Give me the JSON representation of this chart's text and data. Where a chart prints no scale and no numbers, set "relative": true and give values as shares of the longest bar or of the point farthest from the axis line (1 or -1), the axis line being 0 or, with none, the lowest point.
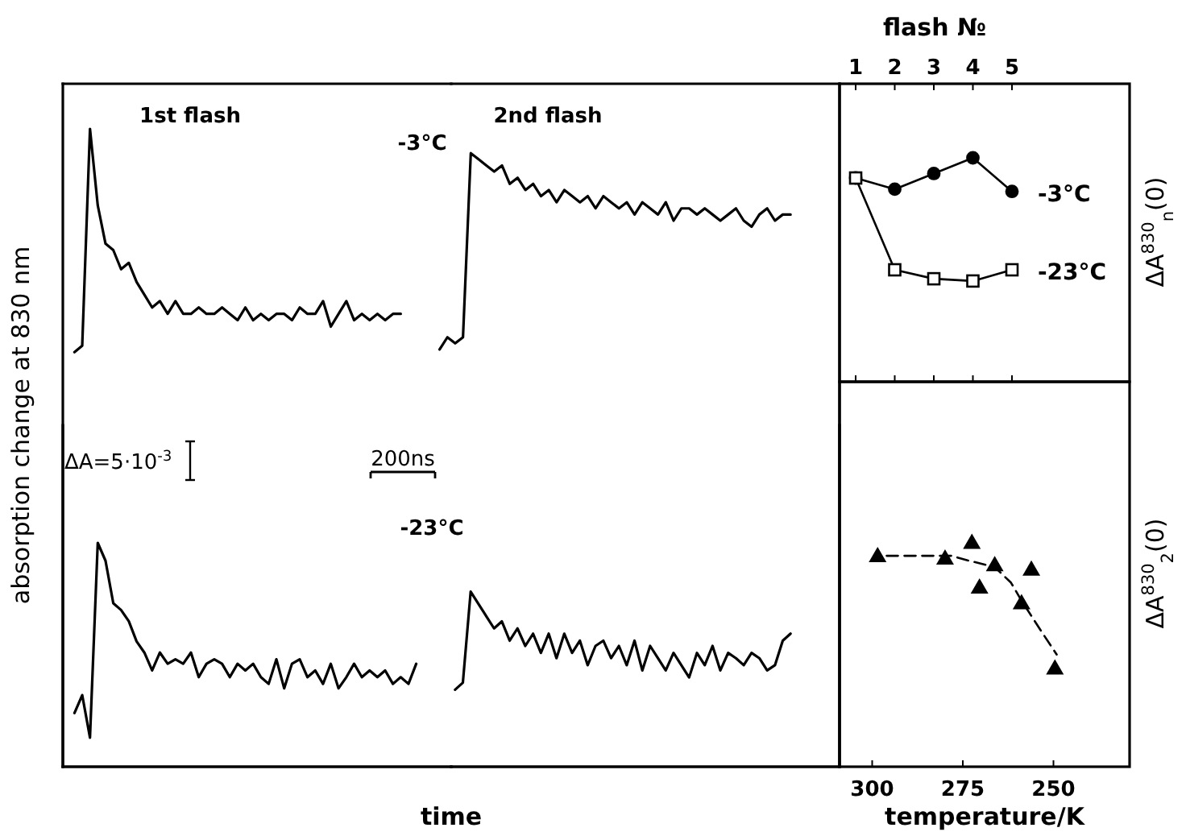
{
  "chart_data": [
    {
      "type": "line",
      "relative": true,
      "ylabel": "absorption change at 830 nm",
      "tick_labels": false,
      "annotations": [
        "1st flash",
        "-3°C",
        "ΔA=5·10$^{-3}$",
        "200ns"
      ],
      "categories": [
        null,
        null,
        null,
        null,
        null,
        null,
        null,
        null,
        null,
        null,
        null,
        null,
        null,
        null,
        null,
        null,
        null,
        null,
        null,
        null,
        null,
        null,
        null,
        null,
        null,
        null,
        null,
        null,
        null,
        null,
        null,
        null,
        null,
        null,
        null,
        null,
        null,
        null,
        null,
        null,
        null,
        null,
        null
      ],
      "series": [
        {
          "color": "#000000",
          "values": [
            0.65,
            0.66,
            1,
            0.88,
            0.82,
            0.81,
            0.78,
            0.79,
            0.76,
            0.74,
            0.72,
            0.73,
            0.71,
            0.73,
            0.71,
            0.71,
            0.72,
            0.71,
            0.71,
            0.72,
            0.71,
            0.7,
            0.72,
            0.7,
            0.71,
            0.7,
            0.71,
            0.71,
            0.7,
            0.72,
            0.71,
            0.71,
            0.73,
            0.69,
            0.71,
            0.73,
            0.7,
            0.71,
            0.7,
            0.71,
            0.7,
            0.71,
            0.71
          ]
        }
      ]
    },
    {
      "type": "line",
      "relative": true,
      "tick_labels": false,
      "annotations": [
        "2nd flash"
      ],
      "categories": [
        null,
        null,
        null,
        null,
        null,
        null,
        null,
        null,
        null,
        null,
        null,
        null,
        null,
        null,
        null,
        null,
        null,
        null,
        null,
        null,
        null,
        null,
        null,
        null,
        null,
        null,
        null,
        null,
        null,
        null,
        null,
        null,
        null,
        null,
        null,
        null,
        null,
        null,
        null,
        null,
        null,
        null,
        null,
        null,
        null,
        null
      ],
      "series": [
        {
          "color": "#000000",
          "values": [
            0.68,
            0.7,
            0.69,
            0.7,
            1,
            0.99,
            0.98,
            0.97,
            0.98,
            0.95,
            0.96,
            0.94,
            0.95,
            0.93,
            0.94,
            0.92,
            0.94,
            0.93,
            0.92,
            0.93,
            0.91,
            0.93,
            0.92,
            0.91,
            0.92,
            0.9,
            0.92,
            0.91,
            0.9,
            0.92,
            0.89,
            0.91,
            0.91,
            0.9,
            0.91,
            0.9,
            0.89,
            0.9,
            0.91,
            0.89,
            0.88,
            0.9,
            0.91,
            0.89,
            0.9,
            0.9
          ]
        }
      ]
    },
    {
      "type": "line",
      "relative": true,
      "xlabel": "time",
      "tick_labels": false,
      "annotations": [
        "-23°C"
      ],
      "categories": [
        null,
        null,
        null,
        null,
        null,
        null,
        null,
        null,
        null,
        null,
        null,
        null,
        null,
        null,
        null,
        null,
        null,
        null,
        null,
        null,
        null,
        null,
        null,
        null,
        null,
        null,
        null,
        null,
        null,
        null,
        null,
        null,
        null,
        null,
        null,
        null,
        null,
        null,
        null,
        null,
        null,
        null,
        null,
        null,
        null
      ],
      "series": [
        {
          "color": "#000000",
          "values": [
            0.24,
            0.32,
            0.13,
            1,
            0.92,
            0.73,
            0.7,
            0.65,
            0.56,
            0.51,
            0.43,
            0.51,
            0.46,
            0.48,
            0.46,
            0.51,
            0.4,
            0.46,
            0.48,
            0.46,
            0.4,
            0.46,
            0.43,
            0.46,
            0.4,
            0.37,
            0.48,
            0.35,
            0.46,
            0.48,
            0.4,
            0.43,
            0.37,
            0.46,
            0.35,
            0.4,
            0.46,
            0.4,
            0.43,
            0.4,
            0.43,
            0.37,
            0.4,
            0.37,
            0.46
          ]
        }
      ]
    },
    {
      "type": "line",
      "relative": true,
      "tick_labels": false,
      "categories": [
        null,
        null,
        null,
        null,
        null,
        null,
        null,
        null,
        null,
        null,
        null,
        null,
        null,
        null,
        null,
        null,
        null,
        null,
        null,
        null,
        null,
        null,
        null,
        null,
        null,
        null,
        null,
        null,
        null,
        null,
        null,
        null,
        null,
        null,
        null,
        null,
        null,
        null,
        null,
        null,
        null,
        null,
        null,
        null
      ],
      "series": [
        {
          "color": "#000000",
          "values": [
            0.44,
            0.48,
            1,
            0.93,
            0.86,
            0.79,
            0.83,
            0.72,
            0.79,
            0.69,
            0.76,
            0.65,
            0.76,
            0.62,
            0.76,
            0.65,
            0.72,
            0.58,
            0.69,
            0.72,
            0.62,
            0.69,
            0.58,
            0.72,
            0.55,
            0.69,
            0.62,
            0.55,
            0.65,
            0.58,
            0.51,
            0.65,
            0.58,
            0.69,
            0.55,
            0.65,
            0.62,
            0.58,
            0.65,
            0.62,
            0.55,
            0.58,
            0.72,
            0.76
          ]
        }
      ]
    },
    {
      "type": "line",
      "relative": true,
      "xlabel": "flash №",
      "ylabel": "ΔA$^{830}$$_{n}$(0)",
      "tick_labels": "x",
      "categories": [
        "1",
        "2",
        "3",
        "4",
        "5"
      ],
      "series": [
        {
          "name": "-3°C",
          "color": "#000000",
          "marker": "circle",
          "values": [
            0.91,
            0.86,
            0.93,
            1,
            0.85
          ]
        },
        {
          "name": "-23°C",
          "color": "#000000",
          "marker": "square",
          "values": [
            0.91,
            0.5,
            0.46,
            0.45,
            0.5
          ]
        }
      ]
    },
    {
      "type": "scatter",
      "relative": true,
      "xlabel": "temperature/K",
      "ylabel": "ΔA$^{830}$$_{2}$(0)",
      "tick_labels": "x",
      "xlim": [
        309,
        229
      ],
      "xticks": [
        300,
        275,
        250
      ],
      "marker": "triangle",
      "series": [
        {
          "color": "#000000",
          "x": [
            298.5,
            279.9,
            272.5,
            270.4,
            266.2,
            258.8,
            256.1,
            249.6
          ],
          "values": [
            0.94,
            0.93,
            1,
            0.8,
            0.9,
            0.73,
            0.88,
            0.44
          ]
        },
        {
          "type": "line",
          "color": "#000000",
          "line_style": "dashed",
          "marker": "none",
          "x": [
            296,
            282.6,
            278.1,
            273.7,
            266.2,
            261.7,
            258.8,
            252.8,
            249.1
          ],
          "values": [
            0.94,
            0.94,
            0.94,
            0.92,
            0.89,
            0.82,
            0.74,
            0.59,
            0.5
          ]
        }
      ]
    }
  ]
}
